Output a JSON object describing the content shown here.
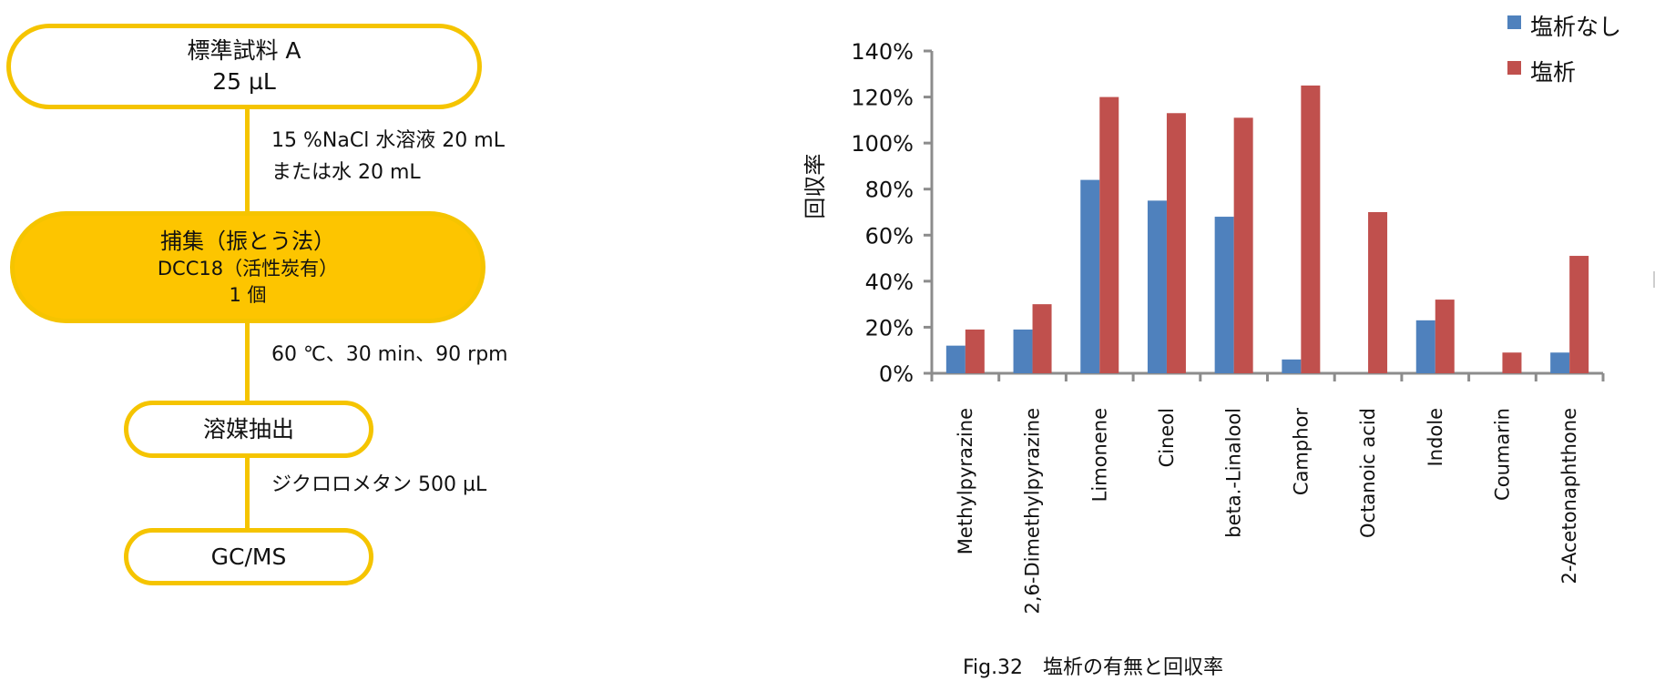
{
  "flowchart": {
    "steps": [
      {
        "line1": "標準試料 A",
        "line2": "25 µL"
      },
      {
        "line1": "捕集（振とう法）",
        "line2": "DCC18（活性炭有）",
        "line3": "1 個"
      },
      {
        "line1": "溶媒抽出"
      },
      {
        "line1": "GC/MS"
      }
    ],
    "conditions": [
      {
        "line1": "15 %NaCl 水溶液 20 mL",
        "line2": "または水 20 mL"
      },
      {
        "line1": "60 ℃、30 min、90 rpm"
      },
      {
        "line1": "ジクロロメタン 500 µL"
      }
    ]
  },
  "chart_data": {
    "type": "bar",
    "title": "",
    "caption": "Fig.32　塩析の有無と回収率",
    "xlabel": "",
    "ylabel": "回収率",
    "ylim": [
      0,
      140
    ],
    "y_unit": "%",
    "y_ticks": [
      "0%",
      "20%",
      "40%",
      "60%",
      "80%",
      "100%",
      "120%",
      "140%"
    ],
    "categories": [
      "Methylpyrazine",
      "2,6-Dimethylpyrazine",
      "Limonene",
      "Cineol",
      "beta.-Linalool",
      "Camphor",
      "Octanoic acid",
      "Indole",
      "Coumarin",
      "2-Acetonaphthone"
    ],
    "series": [
      {
        "name": "塩析なし",
        "color": "#4f81bd",
        "values": [
          12,
          19,
          84,
          75,
          68,
          6,
          0,
          23,
          0,
          9
        ]
      },
      {
        "name": "塩析",
        "color": "#c0504d",
        "values": [
          19,
          30,
          120,
          113,
          111,
          125,
          70,
          32,
          9,
          51
        ]
      }
    ],
    "grid": false,
    "legend": "top-right"
  }
}
